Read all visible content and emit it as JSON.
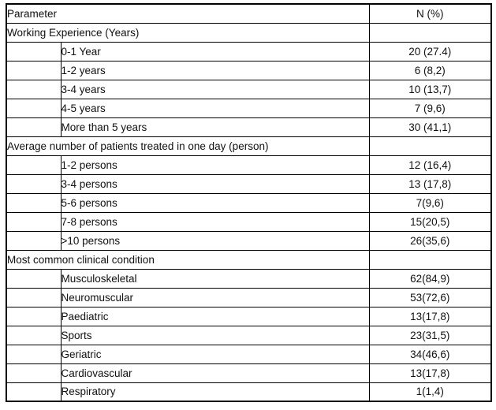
{
  "table": {
    "header": {
      "parameter_label": "Parameter",
      "n_label": "N (%)"
    },
    "sections": [
      {
        "title": "Working Experience (Years)",
        "items": [
          {
            "label": "0-1 Year",
            "value": "20 (27.4)"
          },
          {
            "label": "1-2 years",
            "value": "6 (8,2)"
          },
          {
            "label": "3-4 years",
            "value": "10 (13,7)"
          },
          {
            "label": "4-5 years",
            "value": "7 (9,6)"
          },
          {
            "label": "More than 5 years",
            "value": "30 (41,1)"
          }
        ]
      },
      {
        "title": "Average number of patients treated in one day (person)",
        "items": [
          {
            "label": "1-2 persons",
            "value": "12 (16,4)"
          },
          {
            "label": "3-4 persons",
            "value": "13 (17,8)"
          },
          {
            "label": "5-6 persons",
            "value": "7(9,6)"
          },
          {
            "label": "7-8 persons",
            "value": "15(20,5)"
          },
          {
            "label": ">10 persons",
            "value": "26(35,6)"
          }
        ]
      },
      {
        "title": "Most common clinical condition",
        "items": [
          {
            "label": "Musculoskeletal",
            "value": "62(84,9)"
          },
          {
            "label": "Neuromuscular",
            "value": "53(72,6)"
          },
          {
            "label": "Paediatric",
            "value": "13(17,8)"
          },
          {
            "label": "Sports",
            "value": "23(31,5)"
          },
          {
            "label": "Geriatric",
            "value": "34(46,6)"
          },
          {
            "label": "Cardiovascular",
            "value": "13(17,8)"
          },
          {
            "label": "Respiratory",
            "value": "1(1,4)"
          }
        ]
      }
    ],
    "colors": {
      "border": "#000000",
      "text": "#111111",
      "background": "#ffffff"
    }
  }
}
